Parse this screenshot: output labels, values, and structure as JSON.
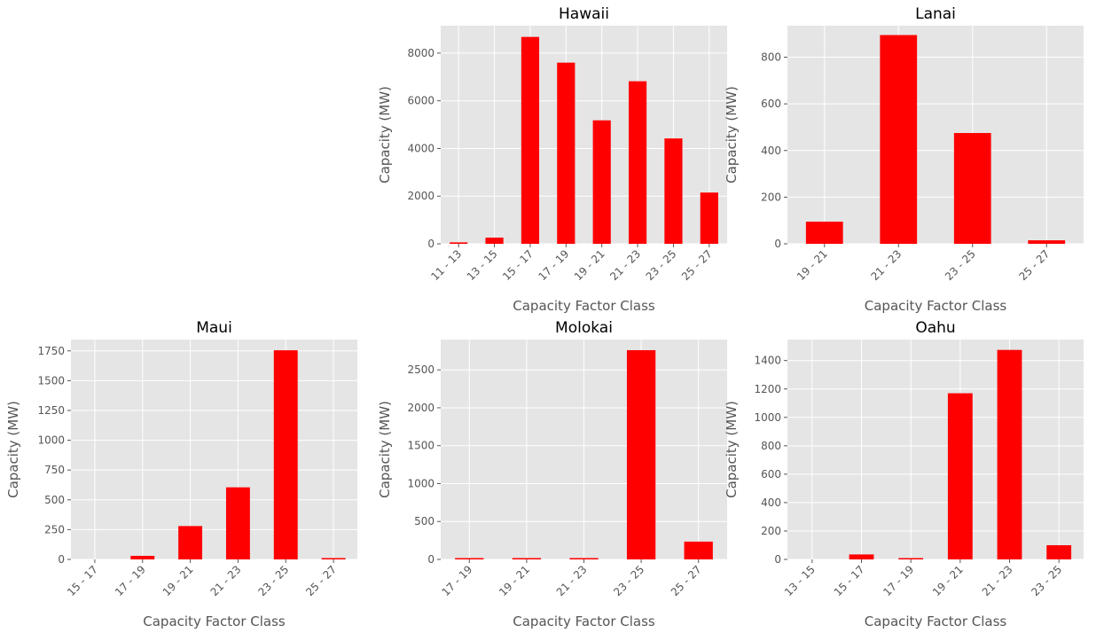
{
  "colors": {
    "bar": "#ff0000",
    "panel_bg": "#e5e5e5",
    "grid": "#ffffff",
    "text": "#555555",
    "title": "#000000"
  },
  "chart_data": [
    {
      "type": "bar",
      "title": "Hawaii",
      "xlabel": "Capacity Factor Class",
      "ylabel": "Capacity (MW)",
      "categories": [
        "11 - 13",
        "13 - 15",
        "15 - 17",
        "17 - 19",
        "19 - 21",
        "21 - 23",
        "23 - 25",
        "25 - 27"
      ],
      "values": [
        60,
        260,
        8680,
        7600,
        5180,
        6820,
        4420,
        2150
      ],
      "ylim": [
        0,
        9150
      ],
      "yticks": [
        0,
        2000,
        4000,
        6000,
        8000
      ],
      "grid": true
    },
    {
      "type": "bar",
      "title": "Lanai",
      "xlabel": "Capacity Factor Class",
      "ylabel": "Capacity (MW)",
      "categories": [
        "19 - 21",
        "21 - 23",
        "23 - 25",
        "25 - 27"
      ],
      "values": [
        95,
        895,
        475,
        15
      ],
      "ylim": [
        0,
        935
      ],
      "yticks": [
        0,
        200,
        400,
        600,
        800
      ],
      "grid": true
    },
    {
      "type": "bar",
      "title": "Maui",
      "xlabel": "Capacity Factor Class",
      "ylabel": "Capacity (MW)",
      "categories": [
        "15 - 17",
        "17 - 19",
        "19 - 21",
        "21 - 23",
        "23 - 25",
        "25 - 27"
      ],
      "values": [
        0,
        30,
        280,
        605,
        1755,
        8
      ],
      "ylim": [
        0,
        1845
      ],
      "yticks": [
        0,
        250,
        500,
        750,
        1000,
        1250,
        1500,
        1750
      ],
      "grid": true
    },
    {
      "type": "bar",
      "title": "Molokai",
      "xlabel": "Capacity Factor Class",
      "ylabel": "Capacity (MW)",
      "categories": [
        "17 - 19",
        "19 - 21",
        "21 - 23",
        "23 - 25",
        "25 - 27"
      ],
      "values": [
        8,
        8,
        8,
        2760,
        235
      ],
      "ylim": [
        0,
        2900
      ],
      "yticks": [
        0,
        500,
        1000,
        1500,
        2000,
        2500
      ],
      "grid": true
    },
    {
      "type": "bar",
      "title": "Oahu",
      "xlabel": "Capacity Factor Class",
      "ylabel": "Capacity (MW)",
      "categories": [
        "13 - 15",
        "15 - 17",
        "17 - 19",
        "19 - 21",
        "21 - 23",
        "23 - 25"
      ],
      "values": [
        0,
        35,
        8,
        1170,
        1475,
        100
      ],
      "ylim": [
        0,
        1548
      ],
      "yticks": [
        0,
        200,
        400,
        600,
        800,
        1000,
        1200,
        1400
      ],
      "grid": true
    }
  ]
}
